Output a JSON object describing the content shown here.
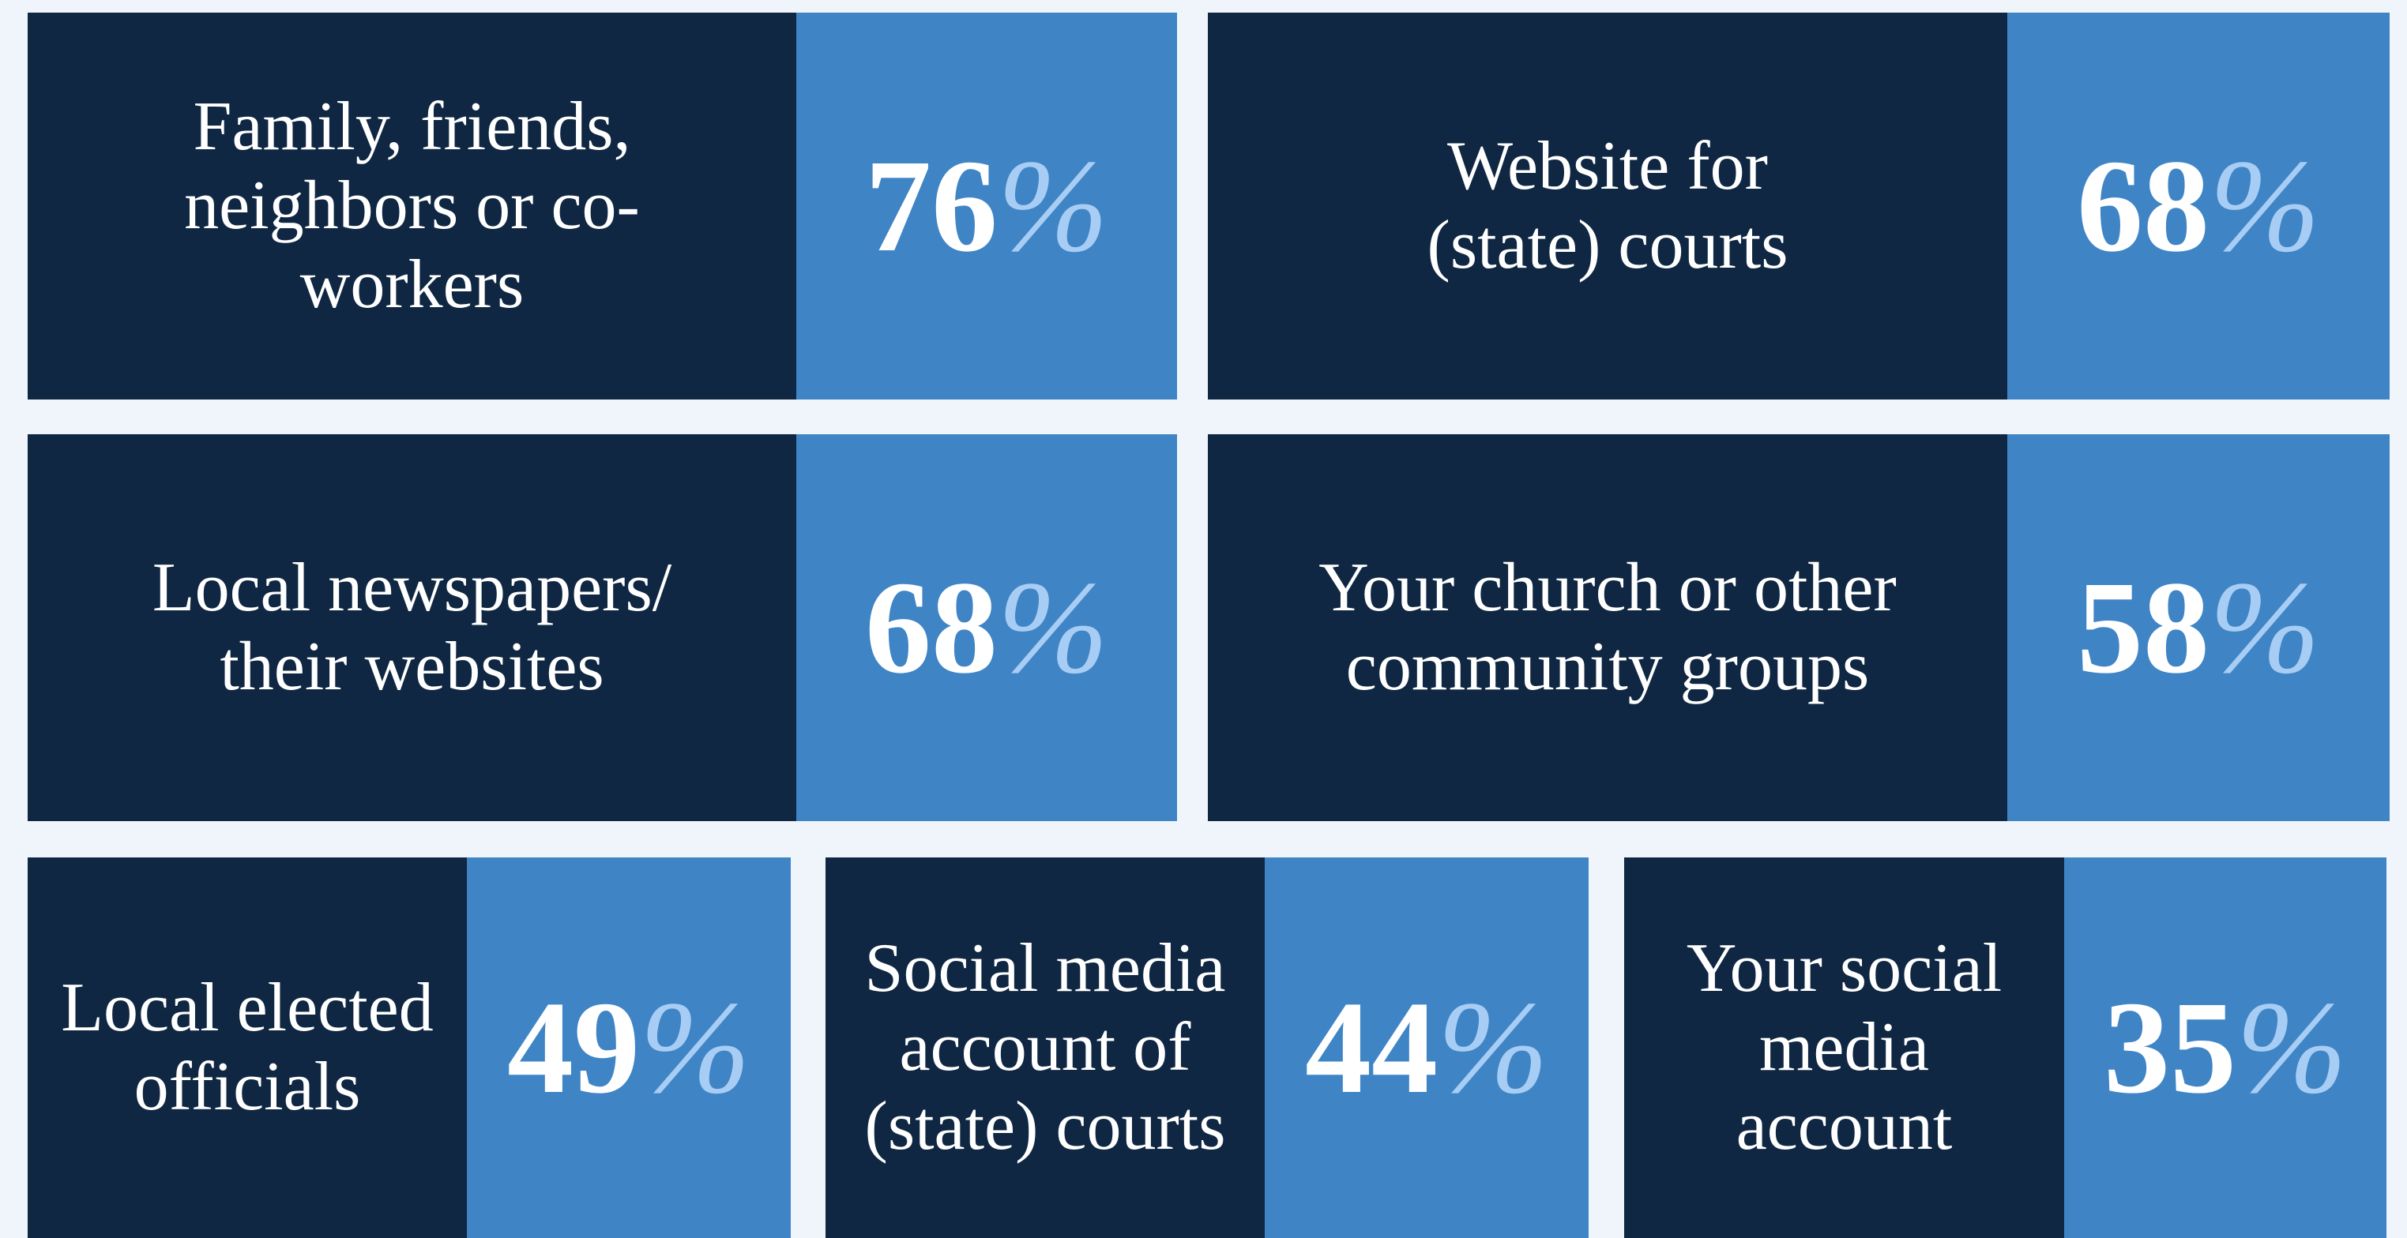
{
  "unit": "%",
  "items": [
    {
      "label": "Family, friends, neighbors or co-workers",
      "value": 76
    },
    {
      "label": "Website for (state) courts",
      "value": 68
    },
    {
      "label": "Local newspapers/ their websites",
      "value": 68
    },
    {
      "label": "Your church or other community groups",
      "value": 58
    },
    {
      "label": "Local elected officials",
      "value": 49
    },
    {
      "label": "Social media account of (state) courts",
      "value": 44
    },
    {
      "label": "Your social media account",
      "value": 35
    }
  ]
}
